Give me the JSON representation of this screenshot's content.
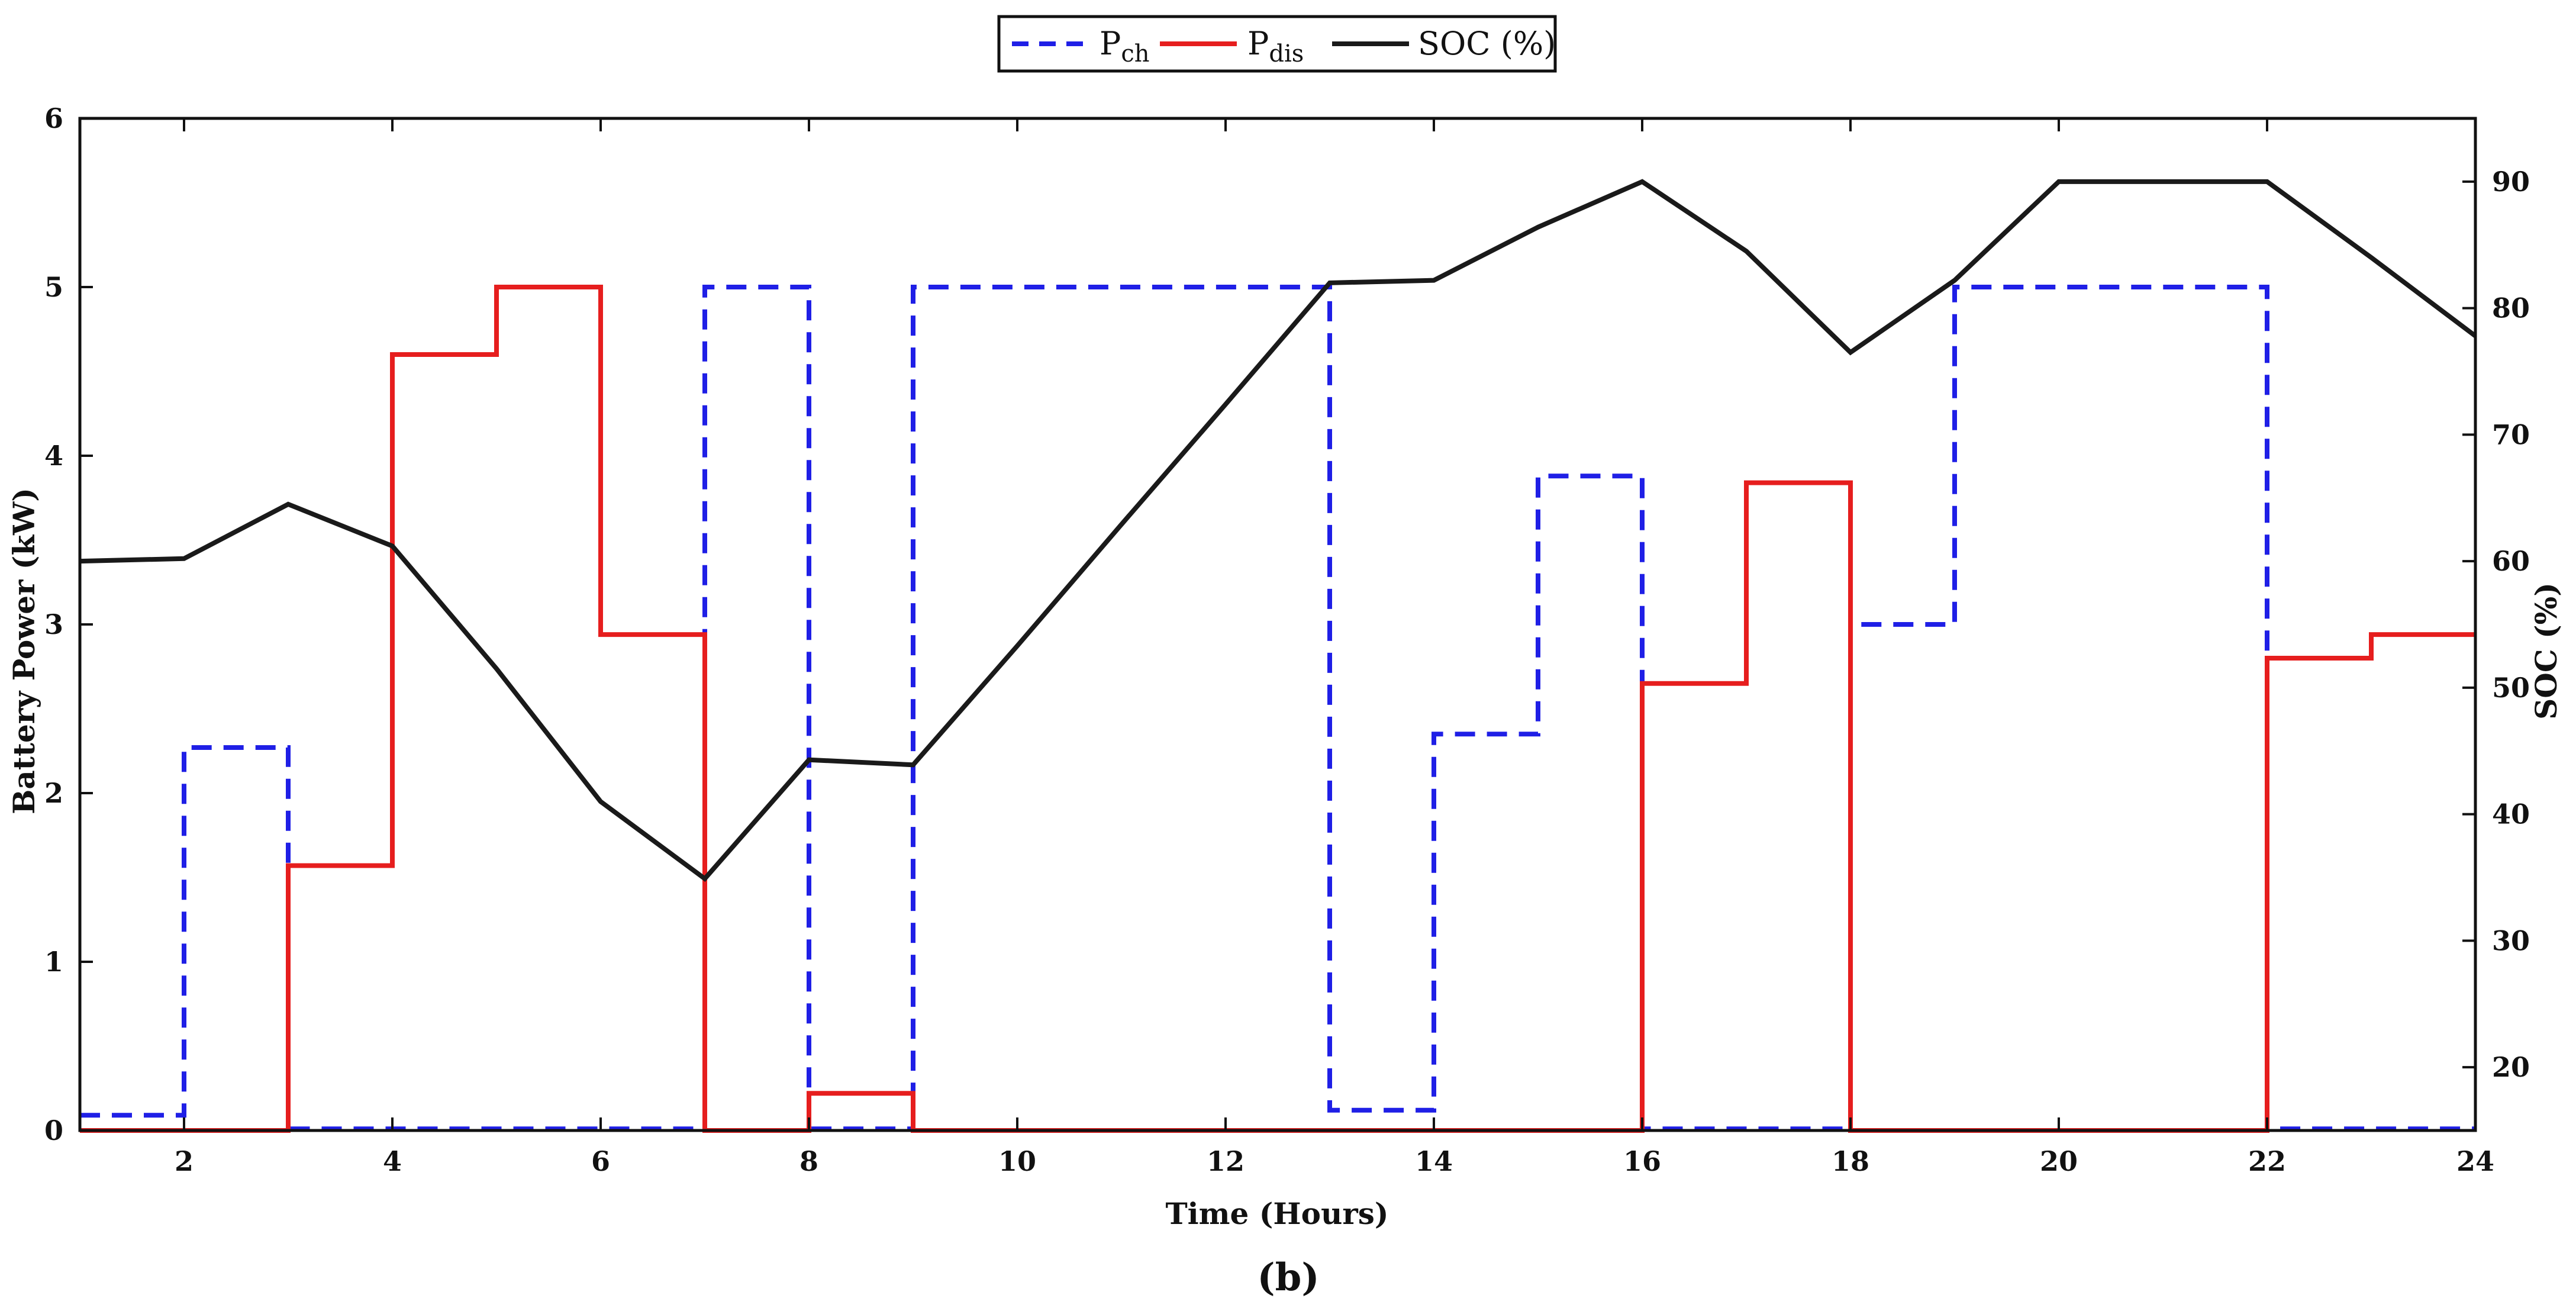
{
  "chart_data": {
    "type": "line",
    "caption": "(b)",
    "xlabel": "Time (Hours)",
    "ylabel_left": "Battery Power (kW)",
    "ylabel_right": "SOC (%)",
    "xlim": [
      1,
      24
    ],
    "ylim_left": [
      0,
      6
    ],
    "ylim_right": [
      15,
      95
    ],
    "x_ticks": [
      2,
      4,
      6,
      8,
      10,
      12,
      14,
      16,
      18,
      20,
      22,
      24
    ],
    "y_ticks_left": [
      0,
      1,
      2,
      3,
      4,
      5,
      6
    ],
    "y_ticks_right": [
      20,
      30,
      40,
      50,
      60,
      70,
      80,
      90
    ],
    "grid": false,
    "legend_position": "top-center",
    "legend": [
      {
        "main": "P",
        "sub": "ch",
        "color": "#1f1fe6",
        "style": "dashed"
      },
      {
        "main": "P",
        "sub": "dis",
        "color": "#e61e1e",
        "style": "solid"
      },
      {
        "main": "SOC (%)",
        "sub": "",
        "color": "#1a1a1a",
        "style": "solid"
      }
    ],
    "series": [
      {
        "name": "Pch",
        "axis": "left",
        "kind": "step",
        "color": "#1f1fe6",
        "hours": [
          1,
          2,
          3,
          4,
          5,
          6,
          7,
          8,
          9,
          10,
          11,
          12,
          13,
          14,
          15,
          16,
          17,
          18,
          19,
          20,
          21,
          22,
          23
        ],
        "values": [
          0.09,
          2.27,
          0.01,
          0.01,
          0.01,
          0.01,
          5.0,
          0.01,
          5.0,
          5.0,
          5.0,
          5.0,
          0.12,
          2.35,
          3.88,
          0.01,
          0.01,
          3.0,
          5.0,
          5.0,
          5.0,
          0.01,
          0.01
        ]
      },
      {
        "name": "Pdis",
        "axis": "left",
        "kind": "step",
        "color": "#e61e1e",
        "hours": [
          1,
          2,
          3,
          4,
          5,
          6,
          7,
          8,
          9,
          10,
          11,
          12,
          13,
          14,
          15,
          16,
          17,
          18,
          19,
          20,
          21,
          22,
          23
        ],
        "values": [
          0,
          0,
          1.57,
          4.6,
          5.0,
          2.94,
          0,
          0.22,
          0,
          0,
          0,
          0,
          0,
          0,
          0,
          2.65,
          3.84,
          0,
          0,
          0,
          0,
          2.8,
          2.94
        ]
      },
      {
        "name": "SOC (%)",
        "axis": "right",
        "kind": "line",
        "color": "#1a1a1a",
        "x": [
          1,
          2,
          3,
          4,
          5,
          6,
          7,
          8,
          9,
          10,
          11,
          12,
          13,
          14,
          15,
          16,
          17,
          18,
          19,
          20,
          21,
          22,
          23,
          24
        ],
        "values": [
          60,
          60.2,
          64.5,
          61.2,
          51.5,
          41,
          34.9,
          44.3,
          43.9,
          53.3,
          62.9,
          72.4,
          82,
          82.2,
          86.4,
          90,
          84.5,
          76.5,
          82.2,
          90,
          90,
          90,
          84,
          77.8
        ]
      }
    ]
  }
}
